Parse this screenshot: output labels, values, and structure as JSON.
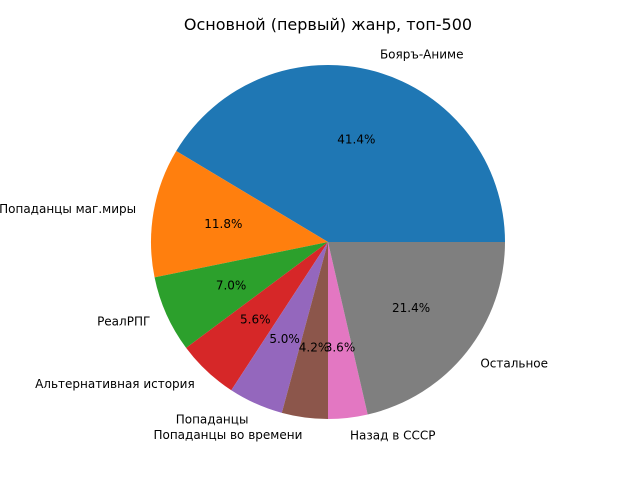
{
  "chart_data": {
    "type": "pie",
    "title": "Основной (первый) жанр, топ-500",
    "start_angle": 0,
    "direction": "counterclockwise",
    "slices": [
      {
        "label": "Бояръ-Аниме",
        "value": 41.4,
        "pct_label": "41.4%",
        "color": "#1f77b4"
      },
      {
        "label": "Попаданцы маг.миры",
        "value": 11.8,
        "pct_label": "11.8%",
        "color": "#ff7f0e"
      },
      {
        "label": "РеалРПГ",
        "value": 7.0,
        "pct_label": "7.0%",
        "color": "#2ca02c"
      },
      {
        "label": "Альтернативная история",
        "value": 5.6,
        "pct_label": "5.6%",
        "color": "#d62728"
      },
      {
        "label": "Попаданцы",
        "value": 5.0,
        "pct_label": "5.0%",
        "color": "#9467bd"
      },
      {
        "label": "Попаданцы во времени",
        "value": 4.2,
        "pct_label": "4.2%",
        "color": "#8c564b"
      },
      {
        "label": "Назад в СССР",
        "value": 3.6,
        "pct_label": "3.6%",
        "color": "#e377c2"
      },
      {
        "label": "Остальное",
        "value": 21.4,
        "pct_label": "21.4%",
        "color": "#7f7f7f"
      }
    ]
  }
}
